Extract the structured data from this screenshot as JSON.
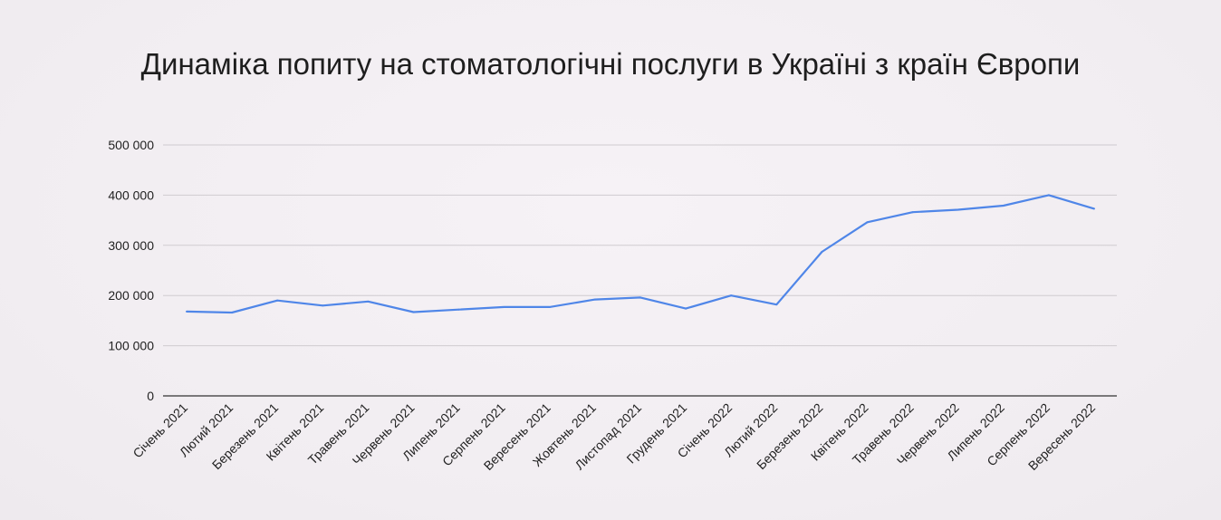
{
  "chart_data": {
    "type": "line",
    "title": "Динаміка попиту на стоматологічні послуги в Україні з країн Європи",
    "xlabel": "",
    "ylabel": "",
    "categories": [
      "Січень 2021",
      "Лютий 2021",
      "Березень 2021",
      "Квітень 2021",
      "Травень 2021",
      "Червень 2021",
      "Липень 2021",
      "Серпень 2021",
      "Вересень 2021",
      "Жовтень 2021",
      "Листопад 2021",
      "Грудень 2021",
      "Січень 2022",
      "Лютий 2022",
      "Березень 2022",
      "Квітень 2022",
      "Травень 2022",
      "Червень 2022",
      "Липень 2022",
      "Серпень 2022",
      "Вересень 2022"
    ],
    "series": [
      {
        "values": [
          168000,
          166000,
          190000,
          180000,
          188000,
          167000,
          172000,
          177000,
          177000,
          192000,
          196000,
          174000,
          200000,
          182000,
          287000,
          346000,
          366000,
          371000,
          379000,
          400000,
          373000
        ]
      }
    ],
    "ylim": [
      0,
      500000
    ],
    "yticks": [
      0,
      100000,
      200000,
      300000,
      400000,
      500000
    ],
    "ytick_labels": [
      "0",
      "100 000",
      "200 000",
      "300 000",
      "400 000",
      "500 000"
    ],
    "grid": true,
    "line_color": "#4f86e8"
  }
}
